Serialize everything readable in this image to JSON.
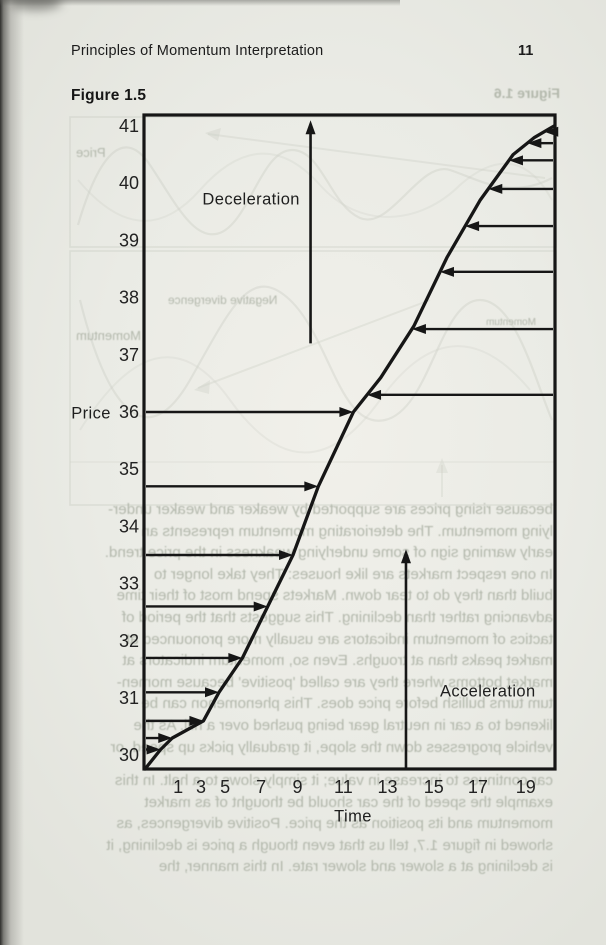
{
  "page": {
    "header": {
      "title": "Principles of Momentum Interpretation",
      "page_number": "11"
    }
  },
  "chart_data": {
    "type": "line",
    "title": "Figure 1.5",
    "xlabel": "Time",
    "ylabel": "Price",
    "x_ticks": [
      1,
      3,
      5,
      7,
      9,
      11,
      13,
      15,
      17,
      19
    ],
    "x_tick_pos": [
      0.081,
      0.137,
      0.196,
      0.284,
      0.373,
      0.485,
      0.593,
      0.706,
      0.814,
      0.931
    ],
    "y_ticks": [
      41,
      40,
      39,
      38,
      37,
      36,
      35,
      34,
      33,
      32,
      31,
      30
    ],
    "xlim": [
      0,
      21
    ],
    "ylim": [
      29.7,
      41.2
    ],
    "grid": false,
    "legend": false,
    "curve": [
      [
        0,
        29.7
      ],
      [
        0.8,
        30.1
      ],
      [
        1.4,
        30.3
      ],
      [
        3.0,
        30.6
      ],
      [
        3.8,
        31.1
      ],
      [
        5.0,
        31.7
      ],
      [
        6.3,
        32.6
      ],
      [
        7.6,
        33.5
      ],
      [
        8.9,
        34.7
      ],
      [
        10.7,
        36.0
      ],
      [
        12.1,
        36.6
      ],
      [
        13.8,
        37.5
      ],
      [
        15.5,
        38.7
      ],
      [
        17.2,
        39.7
      ],
      [
        18.9,
        40.5
      ],
      [
        20.0,
        40.8
      ],
      [
        21.0,
        41.0
      ]
    ],
    "acceleration_arrows_price": [
      30.1,
      30.3,
      30.6,
      31.1,
      31.7,
      32.6,
      33.5,
      34.7,
      36.0
    ],
    "deceleration_arrows_price": [
      36.3,
      37.45,
      38.45,
      39.25,
      39.9,
      40.4,
      40.7,
      40.9
    ],
    "vertical_arrows": [
      {
        "name": "deceleration",
        "t": 8.5,
        "from_price": 37.2,
        "to_price": 41.1
      },
      {
        "name": "acceleration",
        "t": 13.4,
        "from_price": 29.7,
        "to_price": 33.6
      }
    ],
    "annotations": [
      {
        "text": "Deceleration",
        "t": 5.45,
        "price": 39.7
      },
      {
        "text": "Acceleration",
        "t": 17.6,
        "price": 31.1
      }
    ],
    "line_color": "#161616"
  },
  "bleedthrough": {
    "figure_caption": "Figure 1.6",
    "panel1_label": "Price",
    "panel2_label": "Momentum",
    "small_label": "Momentum",
    "divergence_label": "Negative divergence",
    "paragraph_upper": [
      "because rising prices are supported by weaker and weaker under-",
      "lying momentum. The deteriorating momentum represents an",
      "early warning sign of some underlying weakness in the price trend.",
      "In one respect markets are like houses: They take longer to",
      "build than they do to tear down. Markets spend most of their time",
      "advancing rather than declining. This suggests that the period of",
      "tactics of momentum indicators are usually more pronounced at",
      "market peaks than at troughs. Even so, momentum indicators at",
      "market bottoms where they are called 'positive' because momen-",
      "tum turns bullish before price does. This phenomenon can be",
      "likened to a car in neutral gear being pushed over a hill. As the",
      "vehicle progresses down the slope, it gradually picks up speed, or"
    ],
    "paragraph_lower": [
      "car continues to increase in value; it simply slows to a halt. In this",
      "example the speed of the car should be thought of as market",
      "momentum and its position as the price. Positive divergences, as",
      "showed in figure 1.7, tell us that even though a price is declining, it",
      "is declining at a slower and slower rate. In this manner, the"
    ]
  }
}
